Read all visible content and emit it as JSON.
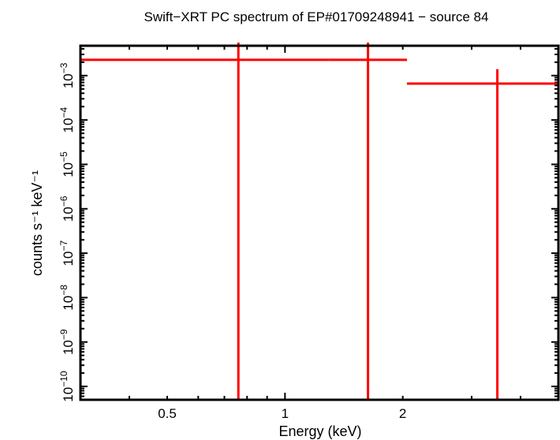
{
  "chart_data": {
    "type": "scatter",
    "title": "Swift−XRT PC spectrum of EP#01709248941 − source 84",
    "xlabel": "Energy (keV)",
    "ylabel": "counts s⁻¹ keV⁻¹",
    "xscale": "log",
    "yscale": "log",
    "xlim": [
      0.3,
      5.0
    ],
    "ylim": [
      5e-11,
      0.0047
    ],
    "x_tick_labels": [
      {
        "value": 0.5,
        "label": "0.5"
      },
      {
        "value": 1,
        "label": "1"
      },
      {
        "value": 2,
        "label": "2"
      }
    ],
    "y_tick_labels": [
      {
        "value": 0.001,
        "base": "10",
        "exp": "−3"
      },
      {
        "value": 0.0001,
        "base": "10",
        "exp": "−4"
      },
      {
        "value": 1e-05,
        "base": "10",
        "exp": "−5"
      },
      {
        "value": 1e-06,
        "base": "10",
        "exp": "−6"
      },
      {
        "value": 1e-07,
        "base": "10",
        "exp": "−7"
      },
      {
        "value": 1e-08,
        "base": "10",
        "exp": "−8"
      },
      {
        "value": 1e-09,
        "base": "10",
        "exp": "−9"
      },
      {
        "value": 1e-10,
        "base": "10",
        "exp": "−10"
      }
    ],
    "grid": false,
    "series": [
      {
        "color": "#ff0000",
        "points": [
          {
            "x": 0.76,
            "xlo": 0.3,
            "xhi": 1.3,
            "y": 0.00226,
            "ylo": 0,
            "yhi": 0.01
          },
          {
            "x": 1.63,
            "xlo": 1.3,
            "xhi": 2.05,
            "y": 0.00226,
            "ylo": 0,
            "yhi": 0.01
          },
          {
            "x": 3.49,
            "xlo": 2.05,
            "xhi": 5.0,
            "y": 0.00066,
            "ylo": 0,
            "yhi": 0.00139
          }
        ]
      }
    ]
  }
}
